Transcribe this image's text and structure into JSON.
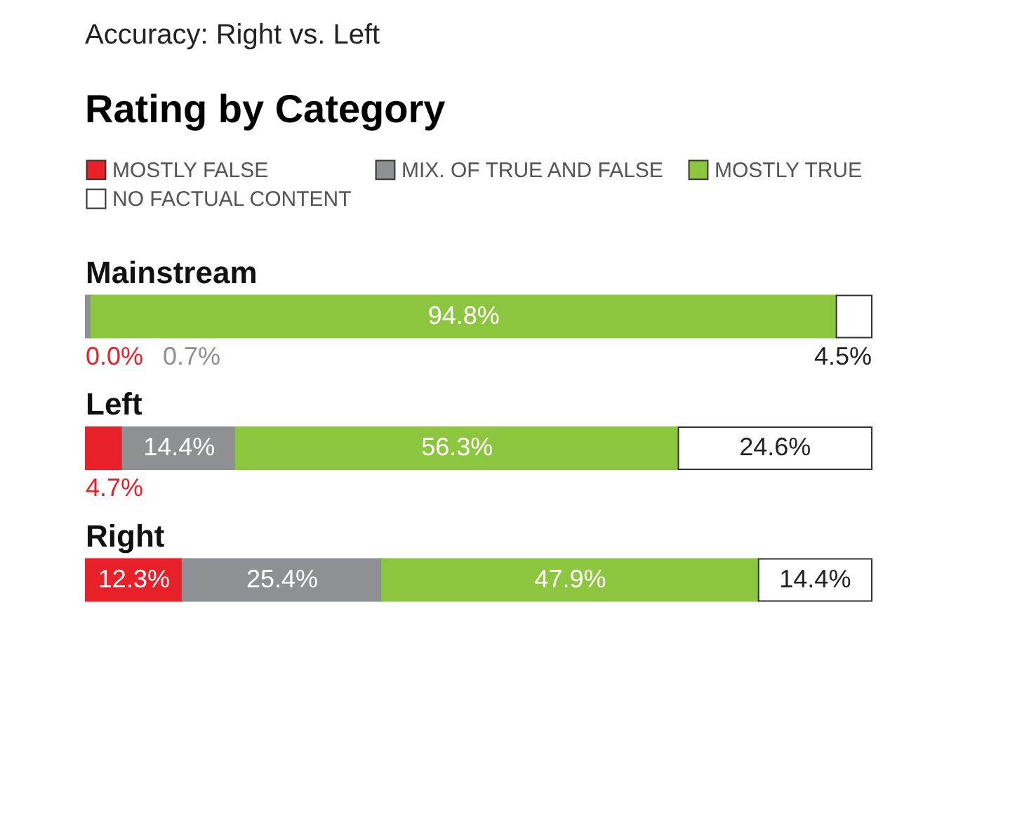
{
  "chart_data": {
    "type": "bar",
    "orientation": "horizontal",
    "stacked": true,
    "title": "Accuracy: Right vs. Left",
    "subtitle": "Rating by Category",
    "legend": "top",
    "categories": [
      "Mainstream",
      "Left",
      "Right"
    ],
    "series": [
      {
        "name": "MOSTLY FALSE",
        "color": "#e8202a",
        "values": [
          0.0,
          4.7,
          12.3
        ],
        "value_labels": [
          "0.0%",
          "4.7%",
          "12.3%"
        ]
      },
      {
        "name": "MIX. OF TRUE AND FALSE",
        "color": "#8f9093",
        "values": [
          0.7,
          14.4,
          25.4
        ],
        "value_labels": [
          "0.7%",
          "14.4%",
          "25.4%"
        ]
      },
      {
        "name": "MOSTLY TRUE",
        "color": "#8cc63e",
        "values": [
          94.8,
          56.3,
          47.9
        ],
        "value_labels": [
          "94.8%",
          "56.3%",
          "47.9%"
        ]
      },
      {
        "name": "NO FACTUAL CONTENT",
        "color": "#ffffff",
        "values": [
          4.5,
          24.6,
          14.4
        ],
        "value_labels": [
          "4.5%",
          "24.6%",
          "14.4%"
        ]
      }
    ]
  }
}
